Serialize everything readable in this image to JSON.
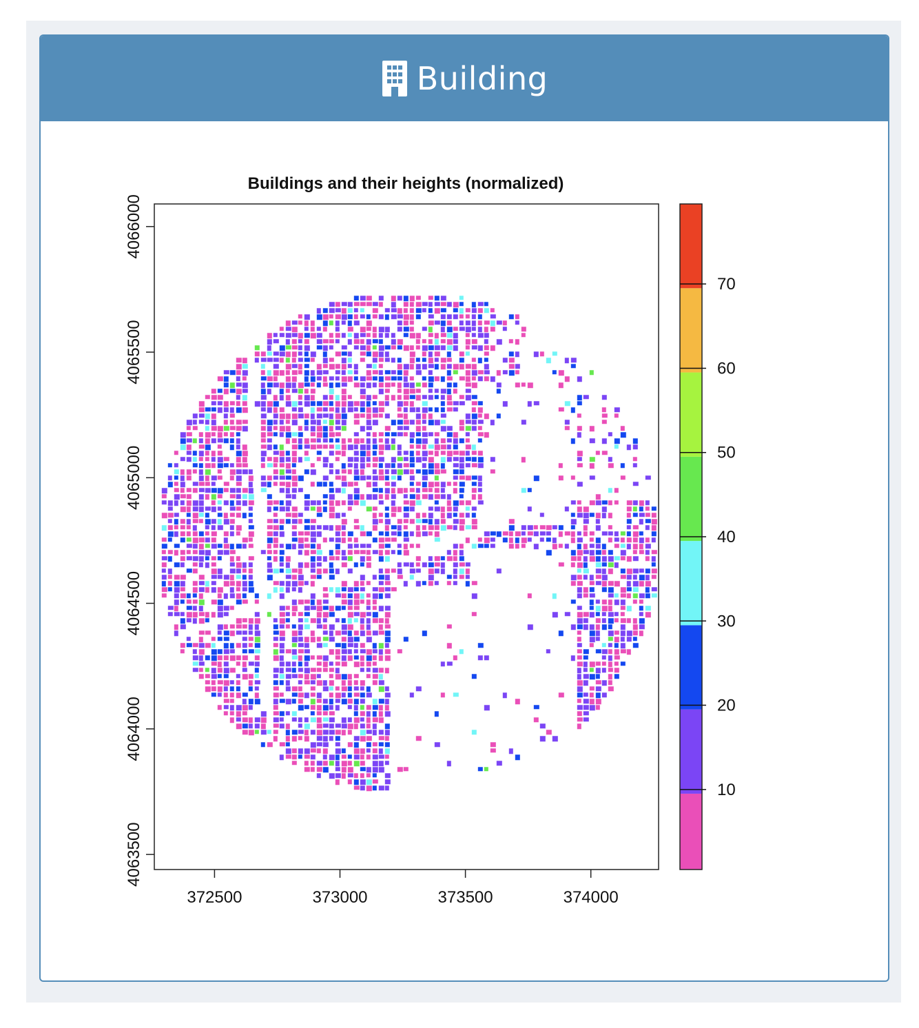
{
  "panel": {
    "title": "Building",
    "icon": "building-icon",
    "header_color": "#548db9"
  },
  "chart_data": {
    "type": "heatmap",
    "title": "Buildings and their heights (normalized)",
    "xlabel": "",
    "ylabel": "",
    "xlim": [
      372260,
      374270
    ],
    "ylim": [
      4063440,
      4066090
    ],
    "x_ticks": [
      "372500",
      "373000",
      "373500",
      "374000"
    ],
    "y_ticks": [
      "4063500",
      "4064000",
      "4064500",
      "4065000",
      "4065500",
      "4066000"
    ],
    "x_tick_values": [
      372500,
      373000,
      373500,
      374000
    ],
    "y_tick_values": [
      4063500,
      4064000,
      4064500,
      4065000,
      4065500,
      4066000
    ],
    "study_area": {
      "center_x": 373265,
      "center_y": 4064750,
      "radius": 1000
    },
    "legend": {
      "placement": "right",
      "range": [
        0.5,
        79.5
      ],
      "ticks": [
        "10",
        "20",
        "30",
        "40",
        "50",
        "60",
        "70"
      ],
      "tick_values": [
        10,
        20,
        30,
        40,
        50,
        60,
        70
      ],
      "bins": [
        {
          "from": 0.5,
          "to": 9.5,
          "color": "#ea4fb8"
        },
        {
          "from": 9.5,
          "to": 19.5,
          "color": "#7b45f5"
        },
        {
          "from": 19.5,
          "to": 29.5,
          "color": "#1448f0"
        },
        {
          "from": 29.5,
          "to": 39.5,
          "color": "#72f5f7"
        },
        {
          "from": 39.5,
          "to": 49.5,
          "color": "#67e84f"
        },
        {
          "from": 49.5,
          "to": 59.5,
          "color": "#a6f33f"
        },
        {
          "from": 59.5,
          "to": 69.5,
          "color": "#f5b942"
        },
        {
          "from": 69.5,
          "to": 79.5,
          "color": "#ea4124"
        }
      ]
    }
  }
}
